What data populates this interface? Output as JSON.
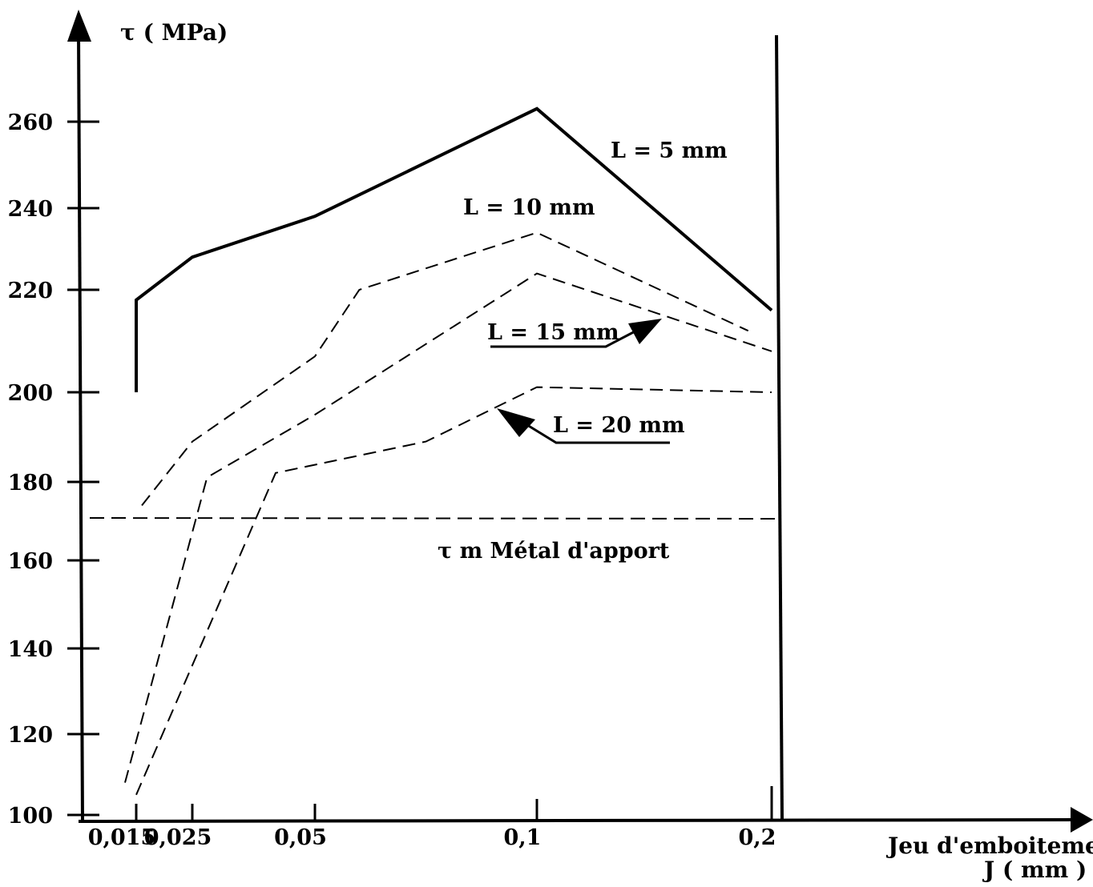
{
  "chart_data": {
    "type": "line",
    "y_axis_title": "τ ( MPa)",
    "x_axis_title_line1": "Jeu d'emboitement",
    "x_axis_title_line2": "J ( mm )",
    "reference_label": "τ m Métal d'apport",
    "reference_value": 170,
    "y_ticks": [
      "100",
      "120",
      "140",
      "160",
      "180",
      "200",
      "220",
      "240",
      "260"
    ],
    "x_ticks": [
      "0,015",
      "0,025",
      "0,05",
      "0,1",
      "0,2"
    ],
    "series": [
      {
        "name": "L = 5 mm",
        "style": "solid",
        "points": [
          [
            0.015,
            200
          ],
          [
            0.015,
            218
          ],
          [
            0.025,
            228
          ],
          [
            0.05,
            238
          ],
          [
            0.1,
            263
          ],
          [
            0.2,
            216
          ]
        ]
      },
      {
        "name": "L = 10 mm",
        "style": "dashed",
        "points": [
          [
            0.016,
            174
          ],
          [
            0.025,
            189
          ],
          [
            0.05,
            207
          ],
          [
            0.06,
            220
          ],
          [
            0.1,
            234
          ],
          [
            0.19,
            212
          ]
        ]
      },
      {
        "name": "L = 15 mm",
        "style": "dashed",
        "points": [
          [
            0.013,
            108
          ],
          [
            0.028,
            181
          ],
          [
            0.05,
            195
          ],
          [
            0.1,
            224
          ],
          [
            0.2,
            208
          ]
        ]
      },
      {
        "name": "L = 20 mm",
        "style": "dashed",
        "points": [
          [
            0.015,
            105
          ],
          [
            0.042,
            182
          ],
          [
            0.075,
            189
          ],
          [
            0.1,
            201
          ],
          [
            0.2,
            200
          ]
        ]
      }
    ],
    "colors": {
      "line": "#000000",
      "background": "#ffffff"
    }
  }
}
